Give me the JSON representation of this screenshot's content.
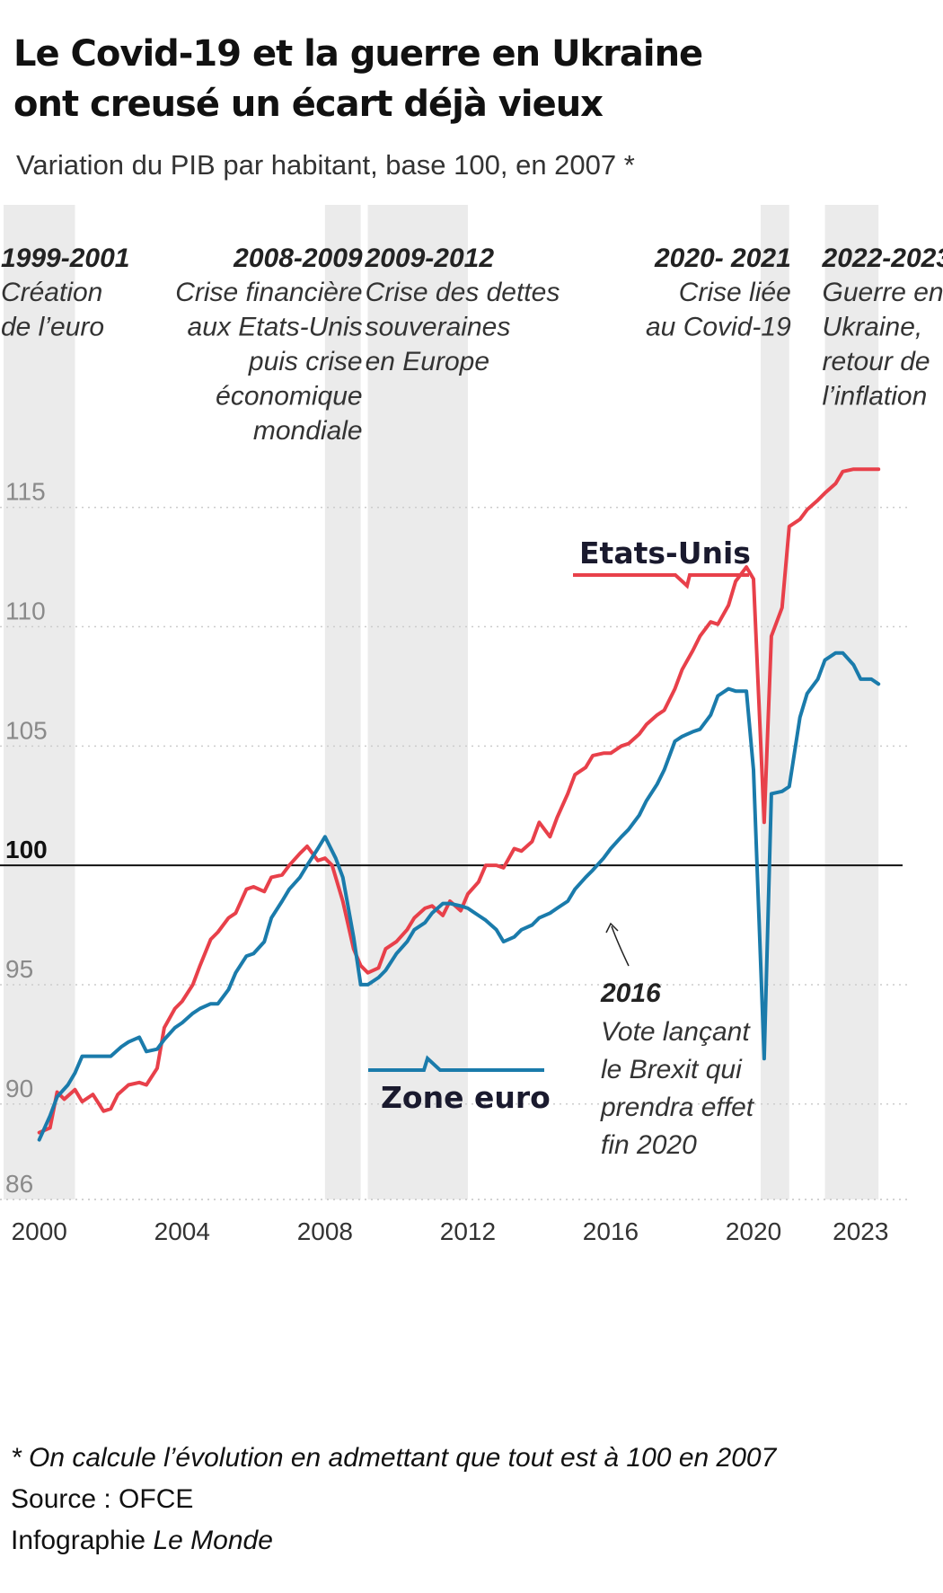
{
  "title_line1": "Le Covid-19 et la guerre en Ukraine",
  "title_line2": "ont creusé un écart déjà vieux",
  "subtitle": "Variation du PIB par habitant, base 100, en 2007 *",
  "footnote": "* On calcule l’évolution en admettant que tout est à 100 en 2007",
  "source": "Source : OFCE",
  "credit_prefix": "Infographie ",
  "credit_name": "Le Monde",
  "colors": {
    "usa": "#e8404a",
    "euro": "#1a7bab",
    "phase_band": "#ebebeb",
    "grid": "#cccccc",
    "ref_line": "#111111"
  },
  "chart_data": {
    "type": "line",
    "x_ticks": [
      "2000",
      "2004",
      "2008",
      "2012",
      "2016",
      "2020",
      "2023"
    ],
    "y_ticks": [
      "86",
      "90",
      "95",
      "100",
      "105",
      "110",
      "115"
    ],
    "ylim": [
      86,
      118
    ],
    "xlim": [
      1998.9,
      2024.3
    ],
    "reference_line": 100,
    "grid": "dotted horizontal",
    "phases": [
      {
        "start": 1999.0,
        "end": 2001.0,
        "years": "1999-2001",
        "lines": [
          "Création",
          "de l’euro"
        ],
        "align": "left"
      },
      {
        "start": 2008.0,
        "end": 2009.0,
        "years": "2008-2009",
        "lines": [
          "Crise financière",
          "aux Etats-Unis",
          "puis crise",
          "économique",
          "mondiale"
        ],
        "align": "right"
      },
      {
        "start": 2009.2,
        "end": 2012.0,
        "years": "2009-2012",
        "lines": [
          "Crise des dettes",
          "souveraines",
          "en Europe"
        ],
        "align": "left"
      },
      {
        "start": 2020.2,
        "end": 2021.0,
        "years": "2020- 2021",
        "lines": [
          "Crise liée",
          "au Covid-19"
        ],
        "align": "right"
      },
      {
        "start": 2022.0,
        "end": 2023.5,
        "years": "2022-2023",
        "lines": [
          "Guerre en",
          "Ukraine,",
          "retour de",
          "l’inflation"
        ],
        "align": "left"
      }
    ],
    "series": [
      {
        "name": "Etats-Unis",
        "color": "#e8404a",
        "x": [
          2000.0,
          2000.3,
          2000.5,
          2000.7,
          2001.0,
          2001.2,
          2001.5,
          2001.8,
          2002.0,
          2002.2,
          2002.5,
          2002.8,
          2003.0,
          2003.3,
          2003.5,
          2003.8,
          2004.0,
          2004.3,
          2004.5,
          2004.8,
          2005.0,
          2005.3,
          2005.5,
          2005.8,
          2006.0,
          2006.3,
          2006.5,
          2006.8,
          2007.0,
          2007.3,
          2007.5,
          2007.8,
          2008.0,
          2008.2,
          2008.5,
          2008.8,
          2009.0,
          2009.2,
          2009.5,
          2009.7,
          2010.0,
          2010.3,
          2010.5,
          2010.8,
          2011.0,
          2011.3,
          2011.5,
          2011.8,
          2012.0,
          2012.3,
          2012.5,
          2012.8,
          2013.0,
          2013.3,
          2013.5,
          2013.8,
          2014.0,
          2014.3,
          2014.5,
          2014.8,
          2015.0,
          2015.3,
          2015.5,
          2015.8,
          2016.0,
          2016.3,
          2016.5,
          2016.8,
          2017.0,
          2017.3,
          2017.5,
          2017.8,
          2018.0,
          2018.3,
          2018.5,
          2018.8,
          2019.0,
          2019.3,
          2019.5,
          2019.8,
          2020.0,
          2020.3,
          2020.5,
          2020.8,
          2021.0,
          2021.3,
          2021.5,
          2021.8,
          2022.0,
          2022.3,
          2022.5,
          2022.8,
          2023.0,
          2023.3,
          2023.5
        ],
        "y": [
          88.8,
          89.0,
          90.5,
          90.2,
          90.6,
          90.1,
          90.4,
          89.7,
          89.8,
          90.4,
          90.8,
          90.9,
          90.8,
          91.5,
          93.2,
          94.0,
          94.3,
          95.0,
          95.8,
          96.9,
          97.2,
          97.8,
          98.0,
          99.0,
          99.1,
          98.9,
          99.5,
          99.6,
          100.0,
          100.5,
          100.8,
          100.2,
          100.3,
          100.0,
          98.5,
          96.5,
          95.8,
          95.5,
          95.7,
          96.5,
          96.8,
          97.3,
          97.8,
          98.2,
          98.3,
          97.9,
          98.5,
          98.1,
          98.8,
          99.3,
          100.0,
          100.0,
          99.9,
          100.7,
          100.6,
          101.0,
          101.8,
          101.2,
          102.0,
          103.0,
          103.8,
          104.1,
          104.6,
          104.7,
          104.7,
          105.0,
          105.1,
          105.5,
          105.9,
          106.3,
          106.5,
          107.4,
          108.2,
          109.0,
          109.6,
          110.2,
          110.1,
          110.9,
          111.9,
          112.5,
          112.0,
          101.8,
          109.6,
          110.8,
          114.2,
          114.5,
          114.9,
          115.3,
          115.6,
          116.0,
          116.5,
          116.6,
          116.6,
          116.6,
          116.6
        ]
      },
      {
        "name": "Zone euro",
        "color": "#1a7bab",
        "x": [
          2000.0,
          2000.3,
          2000.5,
          2000.8,
          2001.0,
          2001.2,
          2001.5,
          2001.8,
          2002.0,
          2002.3,
          2002.5,
          2002.8,
          2003.0,
          2003.3,
          2003.5,
          2003.8,
          2004.0,
          2004.3,
          2004.5,
          2004.8,
          2005.0,
          2005.3,
          2005.5,
          2005.8,
          2006.0,
          2006.3,
          2006.5,
          2006.8,
          2007.0,
          2007.3,
          2007.5,
          2007.8,
          2008.0,
          2008.3,
          2008.5,
          2008.8,
          2009.0,
          2009.2,
          2009.5,
          2009.7,
          2010.0,
          2010.3,
          2010.5,
          2010.8,
          2011.0,
          2011.3,
          2011.5,
          2011.8,
          2012.0,
          2012.3,
          2012.5,
          2012.8,
          2013.0,
          2013.3,
          2013.5,
          2013.8,
          2014.0,
          2014.3,
          2014.5,
          2014.8,
          2015.0,
          2015.3,
          2015.5,
          2015.8,
          2016.0,
          2016.3,
          2016.5,
          2016.8,
          2017.0,
          2017.3,
          2017.5,
          2017.8,
          2018.0,
          2018.3,
          2018.5,
          2018.8,
          2019.0,
          2019.3,
          2019.5,
          2019.8,
          2020.0,
          2020.3,
          2020.5,
          2020.8,
          2021.0,
          2021.3,
          2021.5,
          2021.8,
          2022.0,
          2022.3,
          2022.5,
          2022.8,
          2023.0,
          2023.3,
          2023.5
        ],
        "y": [
          88.5,
          89.5,
          90.3,
          90.8,
          91.3,
          92.0,
          92.0,
          92.0,
          92.0,
          92.4,
          92.6,
          92.8,
          92.2,
          92.3,
          92.7,
          93.2,
          93.4,
          93.8,
          94.0,
          94.2,
          94.2,
          94.8,
          95.5,
          96.2,
          96.3,
          96.8,
          97.8,
          98.5,
          99.0,
          99.5,
          100.0,
          100.7,
          101.2,
          100.3,
          99.5,
          97.0,
          95.0,
          95.0,
          95.3,
          95.6,
          96.3,
          96.8,
          97.3,
          97.6,
          98.0,
          98.4,
          98.4,
          98.3,
          98.2,
          97.9,
          97.7,
          97.3,
          96.8,
          97.0,
          97.3,
          97.5,
          97.8,
          98.0,
          98.2,
          98.5,
          99.0,
          99.5,
          99.8,
          100.3,
          100.7,
          101.2,
          101.5,
          102.1,
          102.7,
          103.4,
          104.0,
          105.2,
          105.4,
          105.6,
          105.7,
          106.3,
          107.1,
          107.4,
          107.3,
          107.3,
          104.0,
          91.9,
          103.0,
          103.1,
          103.3,
          106.2,
          107.2,
          107.8,
          108.6,
          108.9,
          108.9,
          108.4,
          107.8,
          107.8,
          107.6
        ]
      }
    ],
    "annotation_2016": {
      "x": 2016.0,
      "y": 100.0,
      "year": "2016",
      "lines": [
        "Vote lançant",
        "le Brexit qui",
        "prendra effet",
        "fin 2020"
      ]
    }
  }
}
